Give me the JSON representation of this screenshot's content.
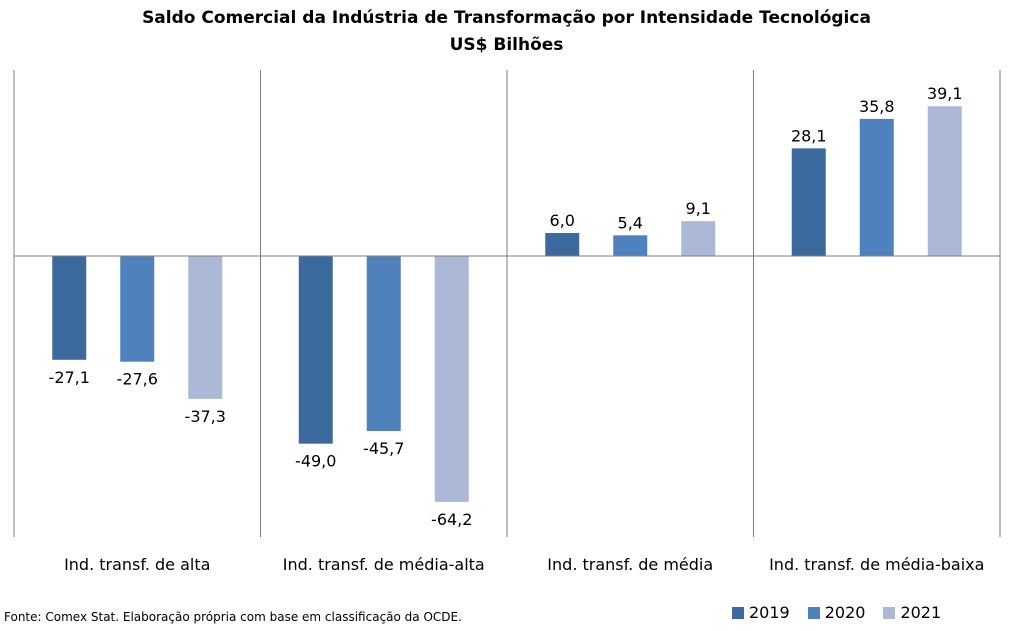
{
  "chart_data": {
    "type": "bar",
    "title": "Saldo Comercial da Indústria de Transformação por Intensidade Tecnológica",
    "subtitle": "US$ Bilhões",
    "categories": [
      "Ind. transf. de alta",
      "Ind. transf. de média-alta",
      "Ind. transf. de média",
      "Ind. transf. de média-baixa"
    ],
    "series": [
      {
        "name": "2019",
        "color": "#3d6a9e",
        "values": [
          -27.1,
          -49.0,
          6.0,
          28.1
        ],
        "labels": [
          "-27,1",
          "-49,0",
          "6,0",
          "28,1"
        ]
      },
      {
        "name": "2020",
        "color": "#4f81bd",
        "values": [
          -27.6,
          -45.7,
          5.4,
          35.8
        ],
        "labels": [
          "-27,6",
          "-45,7",
          "5,4",
          "35,8"
        ]
      },
      {
        "name": "2021",
        "color": "#abb9d6",
        "values": [
          -37.3,
          -64.2,
          9.1,
          39.1
        ],
        "labels": [
          "-37,3",
          "-64,2",
          "9,1",
          "39,1"
        ]
      }
    ],
    "ylim": [
      -74,
      49
    ],
    "legend": "bottom-right",
    "grid": false
  },
  "source_note": "Fonte: Comex Stat. Elaboração própria com base em classificação da OCDE."
}
